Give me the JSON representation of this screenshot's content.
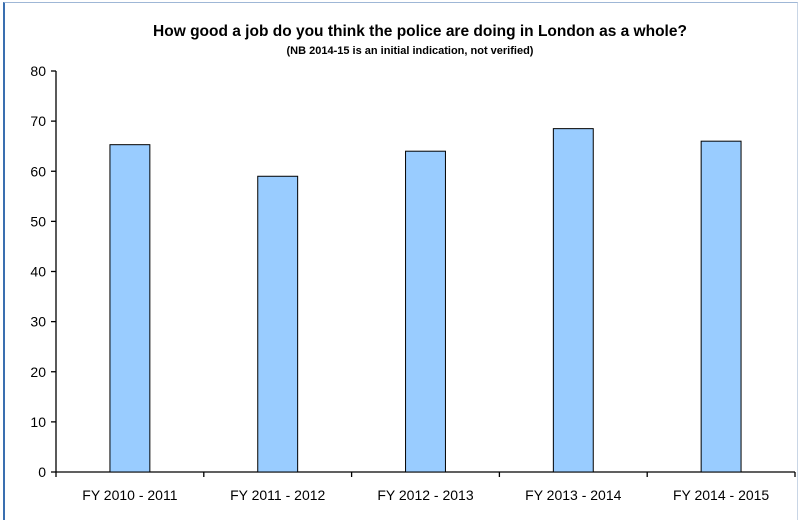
{
  "chart_data": {
    "type": "bar",
    "title": "How good a job do you think the police are doing in London as a whole?",
    "subtitle": "(NB 2014-15 is an initial indication, not verified)",
    "categories": [
      "FY 2010 - 2011",
      "FY 2011 - 2012",
      "FY 2012 - 2013",
      "FY 2013 - 2014",
      "FY 2014 - 2015"
    ],
    "values": [
      65.3,
      59,
      64,
      68.5,
      66
    ],
    "xlabel": "",
    "ylabel": "",
    "ylim": [
      0,
      80
    ],
    "yticks": [
      "0",
      "10",
      "20",
      "30",
      "40",
      "50",
      "60",
      "70",
      "80"
    ],
    "grid": false,
    "legend": "none",
    "colors": {
      "bar_fill": "#99ccff",
      "bar_stroke": "#000000",
      "axis": "#000000"
    }
  }
}
